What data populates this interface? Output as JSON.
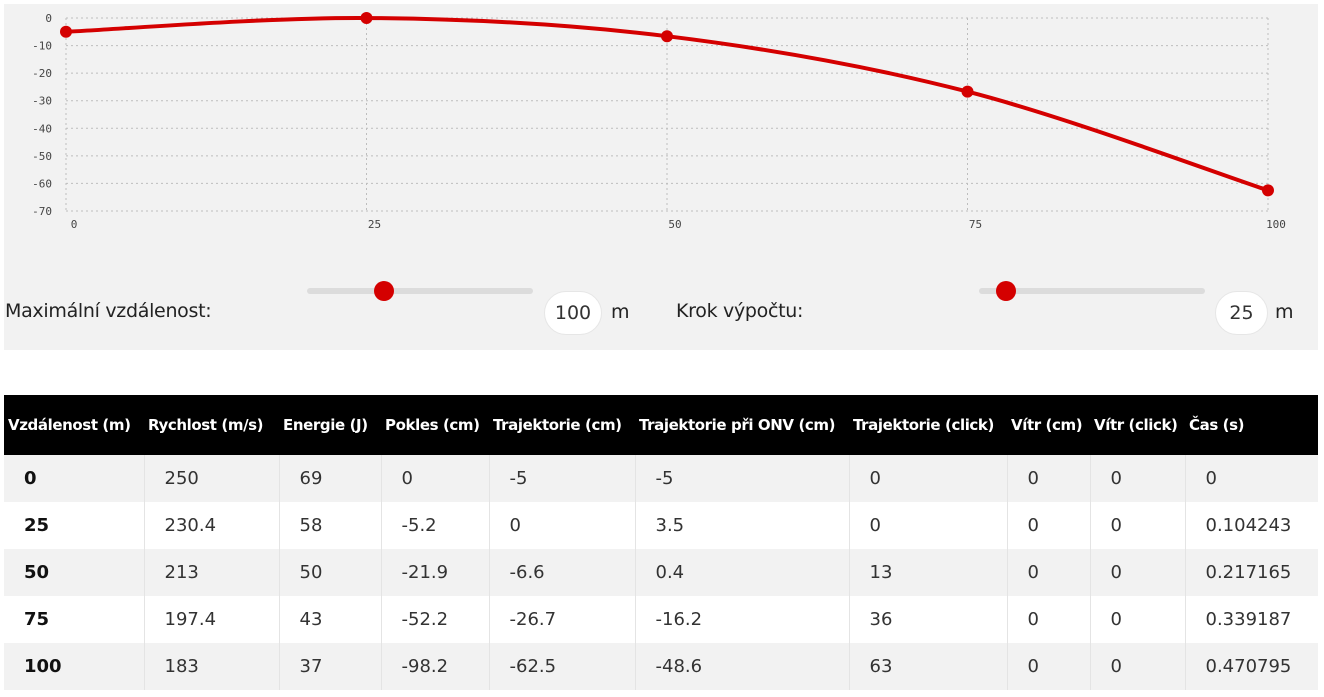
{
  "chart_data": {
    "type": "line",
    "x": [
      0,
      25,
      50,
      75,
      100
    ],
    "series": [
      {
        "values": [
          -5,
          0,
          -6.6,
          -26.7,
          -62.5
        ]
      }
    ],
    "x_ticks": [
      "0",
      "25",
      "50",
      "75",
      "100"
    ],
    "y_ticks": [
      "0",
      "-10",
      "-20",
      "-30",
      "-40",
      "-50",
      "-60",
      "-70"
    ],
    "xlim": [
      0,
      100
    ],
    "ylim": [
      -70,
      0
    ],
    "grid": true,
    "line_color": "#d40000"
  },
  "controls": {
    "max_distance": {
      "label": "Maximální vzdálenost:",
      "value": "100",
      "unit": "m",
      "slider_fraction": 0.34
    },
    "step": {
      "label": "Krok výpočtu:",
      "value": "25",
      "unit": "m",
      "slider_fraction": 0.12
    }
  },
  "table": {
    "headers": [
      "Vzdálenost (m)",
      "Rychlost (m/s)",
      "Energie (J)",
      "Pokles (cm)",
      "Trajektorie (cm)",
      "Trajektorie při ONV (cm)",
      "Trajektorie (click)",
      "Vítr (cm)",
      "Vítr (click)",
      "Čas (s)"
    ],
    "rows": [
      [
        "0",
        "250",
        "69",
        "0",
        "-5",
        "-5",
        "0",
        "0",
        "0",
        "0"
      ],
      [
        "25",
        "230.4",
        "58",
        "-5.2",
        "0",
        "3.5",
        "0",
        "0",
        "0",
        "0.104243"
      ],
      [
        "50",
        "213",
        "50",
        "-21.9",
        "-6.6",
        "0.4",
        "13",
        "0",
        "0",
        "0.217165"
      ],
      [
        "75",
        "197.4",
        "43",
        "-52.2",
        "-26.7",
        "-16.2",
        "36",
        "0",
        "0",
        "0.339187"
      ],
      [
        "100",
        "183",
        "37",
        "-98.2",
        "-62.5",
        "-48.6",
        "63",
        "0",
        "0",
        "0.470795"
      ]
    ]
  },
  "colors": {
    "accent": "#d40000",
    "header_bg": "#000000",
    "panel_bg": "#f2f2f2"
  }
}
